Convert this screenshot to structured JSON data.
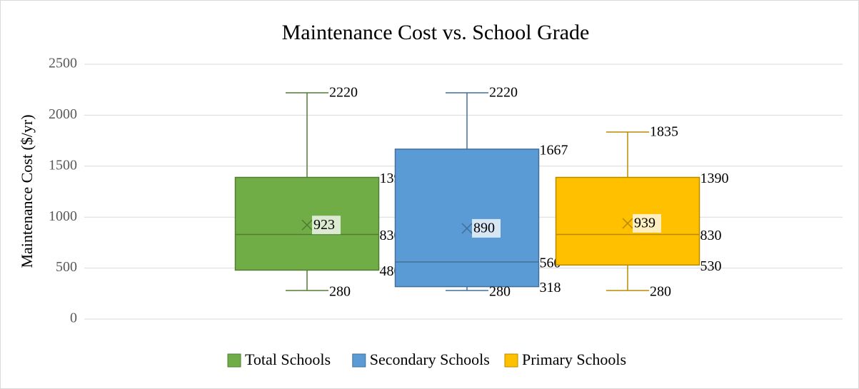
{
  "chart_data": {
    "type": "box",
    "title": "Maintenance Cost vs. School Grade",
    "y_label": "Maintenance Cost ($/yr)",
    "ylim": [
      0,
      2500
    ],
    "yticks": [
      0,
      500,
      1000,
      1500,
      2000,
      2500
    ],
    "grid": true,
    "legend": "bottom",
    "series": [
      {
        "name": "Total Schools",
        "color": "#70ad47",
        "min": 280,
        "q1": 480,
        "median": 830,
        "q3": 1390,
        "max": 2220,
        "mean": 923
      },
      {
        "name": "Secondary Schools",
        "color": "#5b9bd5",
        "min": 280,
        "q1": 318,
        "median": 560,
        "q3": 1667,
        "max": 2220,
        "mean": 890
      },
      {
        "name": "Primary Schools",
        "color": "#ffc000",
        "min": 280,
        "q1": 530,
        "median": 830,
        "q3": 1390,
        "max": 1835,
        "mean": 939
      }
    ]
  }
}
